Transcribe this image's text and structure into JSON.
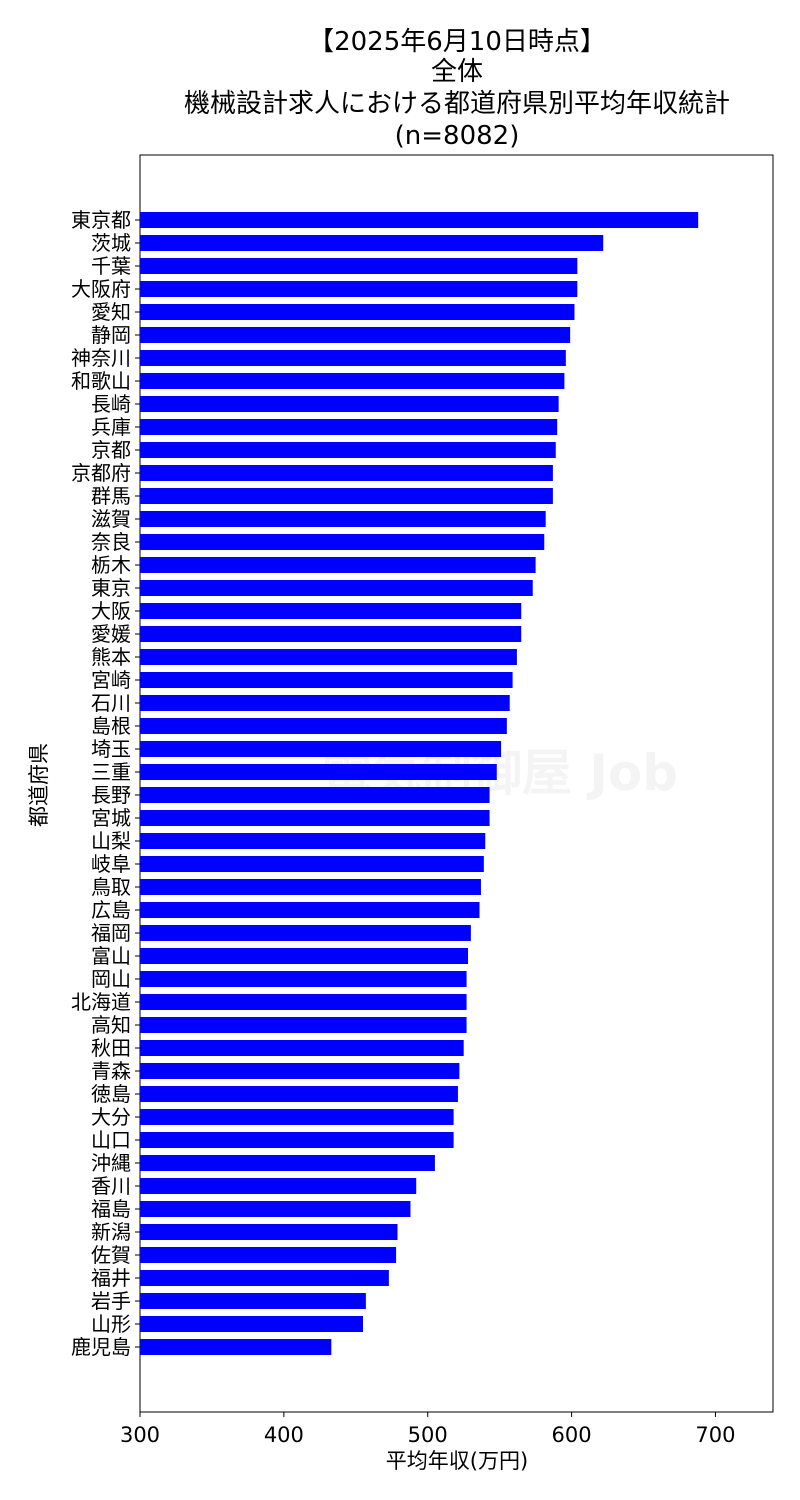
{
  "chart_data": {
    "type": "bar",
    "orientation": "horizontal",
    "title_lines": [
      "【2025年6月10日時点】",
      "全体",
      "機械設計求人における都道府県別平均年収統計",
      "(n=8082)"
    ],
    "xlabel": "平均年収(万円)",
    "ylabel": "都道府県",
    "xlim": [
      300,
      740
    ],
    "xticks": [
      300,
      400,
      500,
      600,
      700
    ],
    "bar_color": "#0000ff",
    "grid": false,
    "watermark": "電気制御屋 Job",
    "categories": [
      "東京都",
      "茨城",
      "千葉",
      "大阪府",
      "愛知",
      "静岡",
      "神奈川",
      "和歌山",
      "長崎",
      "兵庫",
      "京都",
      "京都府",
      "群馬",
      "滋賀",
      "奈良",
      "栃木",
      "東京",
      "大阪",
      "愛媛",
      "熊本",
      "宮崎",
      "石川",
      "島根",
      "埼玉",
      "三重",
      "長野",
      "宮城",
      "山梨",
      "岐阜",
      "鳥取",
      "広島",
      "福岡",
      "富山",
      "岡山",
      "北海道",
      "高知",
      "秋田",
      "青森",
      "徳島",
      "大分",
      "山口",
      "沖縄",
      "香川",
      "福島",
      "新潟",
      "佐賀",
      "福井",
      "岩手",
      "山形",
      "鹿児島"
    ],
    "values": [
      688,
      622,
      604,
      604,
      602,
      599,
      596,
      595,
      591,
      590,
      589,
      587,
      587,
      582,
      581,
      575,
      573,
      565,
      565,
      562,
      559,
      557,
      555,
      551,
      548,
      543,
      543,
      540,
      539,
      537,
      536,
      530,
      528,
      527,
      527,
      527,
      525,
      522,
      521,
      518,
      518,
      505,
      492,
      488,
      479,
      478,
      473,
      457,
      455,
      433
    ]
  }
}
